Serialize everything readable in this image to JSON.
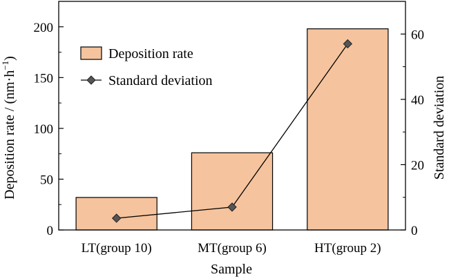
{
  "chart_data": {
    "type": "bar",
    "categories": [
      "LT(group 10)",
      "MT(group 6)",
      "HT(group 2)"
    ],
    "xlabel": "Sample",
    "ylabel_main": "Deposition rate / (nm·h",
    "ylabel_sup": "−1",
    "ylabel_close": ")",
    "ylabel_right": "Standard deviation",
    "ylim": [
      0,
      225
    ],
    "ylim_right": [
      0,
      70
    ],
    "yticks_left": [
      0,
      50,
      100,
      150,
      200
    ],
    "yticks_left_minor": [
      25,
      75,
      125,
      175,
      225
    ],
    "yticks_right": [
      0,
      20,
      40,
      60
    ],
    "yticks_right_minor": [
      10,
      30,
      50,
      70
    ],
    "series": [
      {
        "name": "Deposition rate",
        "kind": "bar",
        "axis": "left",
        "color": "#f5c39d",
        "values": [
          32,
          76,
          198
        ]
      },
      {
        "name": "Standard deviation",
        "kind": "line",
        "axis": "right",
        "color": "#000000",
        "marker": "diamond",
        "marker_color": "#555555",
        "values": [
          3.6,
          7.0,
          57.0
        ]
      }
    ],
    "legend": {
      "position": "top-left"
    },
    "grid": false
  }
}
